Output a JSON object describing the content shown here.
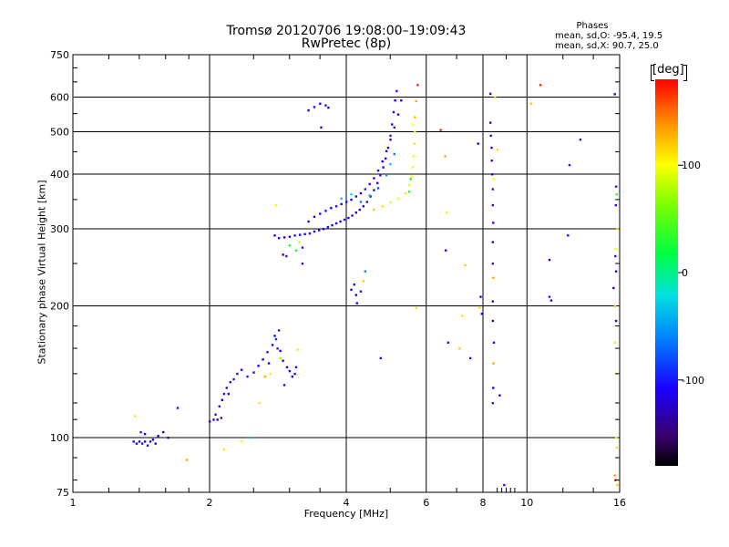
{
  "chart_data": {
    "type": "scatter",
    "title": "Tromsø 20120706 19:08:00–19:09:43",
    "subtitle": "RwPretec (8p)",
    "xlabel": "Frequency [MHz]",
    "ylabel": "Stationary phase Virtual Height [km]",
    "x_scale": "log",
    "y_scale": "log",
    "xlim": [
      1,
      16
    ],
    "ylim": [
      75,
      750
    ],
    "x_ticks": [
      "1",
      "2",
      "4",
      "6",
      "8",
      "10",
      "16"
    ],
    "x_tick_values": [
      1,
      2,
      4,
      6,
      8,
      10,
      16
    ],
    "y_ticks": [
      "75",
      "100",
      "200",
      "300",
      "400",
      "500",
      "600",
      "750"
    ],
    "y_tick_values": [
      75,
      100,
      200,
      300,
      400,
      500,
      600,
      750
    ],
    "grid": true,
    "phase_summary": {
      "header": "Phases",
      "line_o": "mean, sd,O: -95.4, 19.5",
      "line_x": "mean, sd,X:  90.7, 25.0"
    },
    "colorbar": {
      "label": "[deg]",
      "ticks": [
        "100",
        "0",
        "-100"
      ],
      "tick_values": [
        100,
        0,
        -100
      ],
      "range": [
        -180,
        180
      ]
    },
    "points": [
      [
        1.36,
        98,
        -110
      ],
      [
        1.38,
        97,
        -105
      ],
      [
        1.4,
        98,
        -115
      ],
      [
        1.42,
        97,
        -100
      ],
      [
        1.44,
        98,
        -108
      ],
      [
        1.46,
        96,
        -112
      ],
      [
        1.48,
        98,
        -104
      ],
      [
        1.5,
        99,
        -110
      ],
      [
        1.52,
        97,
        -106
      ],
      [
        1.41,
        103,
        -100
      ],
      [
        1.44,
        102,
        -108
      ],
      [
        1.54,
        101,
        -115
      ],
      [
        1.58,
        103,
        -110
      ],
      [
        1.62,
        100,
        -105
      ],
      [
        1.37,
        112,
        90
      ],
      [
        1.7,
        117,
        -100
      ],
      [
        1.78,
        89,
        130
      ],
      [
        2.0,
        109,
        -110
      ],
      [
        2.04,
        110,
        -105
      ],
      [
        2.08,
        110,
        -112
      ],
      [
        2.12,
        111,
        -108
      ],
      [
        2.06,
        113,
        -100
      ],
      [
        2.1,
        118,
        -102
      ],
      [
        2.13,
        122,
        -110
      ],
      [
        2.15,
        126,
        -96
      ],
      [
        2.18,
        130,
        -104
      ],
      [
        2.22,
        134,
        -100
      ],
      [
        2.2,
        126,
        -112
      ],
      [
        2.26,
        136,
        -98
      ],
      [
        2.3,
        140,
        -104
      ],
      [
        2.35,
        143,
        -108
      ],
      [
        2.42,
        138,
        -100
      ],
      [
        2.5,
        141,
        -112
      ],
      [
        2.56,
        146,
        -104
      ],
      [
        2.62,
        151,
        -110
      ],
      [
        2.68,
        157,
        -100
      ],
      [
        2.7,
        148,
        -115
      ],
      [
        2.75,
        163,
        -106
      ],
      [
        2.82,
        160,
        -100
      ],
      [
        2.86,
        158,
        -110
      ],
      [
        2.78,
        171,
        -104
      ],
      [
        2.84,
        176,
        -100
      ],
      [
        2.8,
        168,
        -96
      ],
      [
        2.9,
        150,
        -108
      ],
      [
        2.96,
        145,
        -104
      ],
      [
        3.0,
        142,
        -108
      ],
      [
        3.04,
        138,
        -112
      ],
      [
        3.08,
        140,
        -100
      ],
      [
        3.1,
        145,
        -106
      ],
      [
        2.92,
        132,
        -100
      ],
      [
        2.65,
        138,
        130
      ],
      [
        2.72,
        140,
        105
      ],
      [
        3.12,
        159,
        90
      ],
      [
        2.86,
        152,
        70
      ],
      [
        2.15,
        94,
        110
      ],
      [
        2.35,
        98,
        100
      ],
      [
        2.48,
        100,
        -30
      ],
      [
        2.57,
        120,
        110
      ],
      [
        2.78,
        290,
        -110
      ],
      [
        2.84,
        286,
        -105
      ],
      [
        2.92,
        287,
        -112
      ],
      [
        3.0,
        288,
        -108
      ],
      [
        3.08,
        290,
        -100
      ],
      [
        3.16,
        291,
        -104
      ],
      [
        3.24,
        292,
        -110
      ],
      [
        3.32,
        293,
        -106
      ],
      [
        3.4,
        296,
        -112
      ],
      [
        3.48,
        298,
        -104
      ],
      [
        3.56,
        300,
        -108
      ],
      [
        3.64,
        303,
        -100
      ],
      [
        3.72,
        306,
        -110
      ],
      [
        3.8,
        309,
        -104
      ],
      [
        3.88,
        312,
        -106
      ],
      [
        3.96,
        315,
        -100
      ],
      [
        4.04,
        318,
        -108
      ],
      [
        4.12,
        322,
        -102
      ],
      [
        4.2,
        327,
        -110
      ],
      [
        4.28,
        332,
        -104
      ],
      [
        4.36,
        338,
        -106
      ],
      [
        4.44,
        346,
        -100
      ],
      [
        4.52,
        356,
        -108
      ],
      [
        4.6,
        368,
        -104
      ],
      [
        4.68,
        382,
        -110
      ],
      [
        4.75,
        398,
        -100
      ],
      [
        4.82,
        415,
        -106
      ],
      [
        4.88,
        435,
        -104
      ],
      [
        4.94,
        460,
        -110
      ],
      [
        5.0,
        490,
        -100
      ],
      [
        5.04,
        520,
        -106
      ],
      [
        5.08,
        555,
        -104
      ],
      [
        5.12,
        590,
        -108
      ],
      [
        5.16,
        620,
        -100
      ],
      [
        3.3,
        312,
        -110
      ],
      [
        3.4,
        320,
        -104
      ],
      [
        3.5,
        325,
        -106
      ],
      [
        3.6,
        330,
        -100
      ],
      [
        3.7,
        335,
        -108
      ],
      [
        3.8,
        338,
        -104
      ],
      [
        3.9,
        342,
        -110
      ],
      [
        4.0,
        346,
        -100
      ],
      [
        4.1,
        350,
        -106
      ],
      [
        4.2,
        356,
        -104
      ],
      [
        4.3,
        362,
        -108
      ],
      [
        4.4,
        370,
        -100
      ],
      [
        4.5,
        380,
        -104
      ],
      [
        4.6,
        392,
        -110
      ],
      [
        4.7,
        408,
        -100
      ],
      [
        4.8,
        428,
        -106
      ],
      [
        4.9,
        452,
        -104
      ],
      [
        5.0,
        480,
        -108
      ],
      [
        5.1,
        512,
        -100
      ],
      [
        5.2,
        548,
        -106
      ],
      [
        5.28,
        590,
        -104
      ],
      [
        3.9,
        352,
        -30
      ],
      [
        4.1,
        360,
        -20
      ],
      [
        4.3,
        346,
        -60
      ],
      [
        4.5,
        358,
        -40
      ],
      [
        4.7,
        372,
        -80
      ],
      [
        4.9,
        398,
        -50
      ],
      [
        5.0,
        422,
        -30
      ],
      [
        5.1,
        445,
        -60
      ],
      [
        4.6,
        332,
        120
      ],
      [
        4.8,
        338,
        110
      ],
      [
        5.0,
        345,
        105
      ],
      [
        5.2,
        352,
        100
      ],
      [
        5.4,
        362,
        110
      ],
      [
        5.5,
        378,
        95
      ],
      [
        5.56,
        395,
        100
      ],
      [
        5.6,
        415,
        105
      ],
      [
        5.62,
        440,
        100
      ],
      [
        5.64,
        470,
        110
      ],
      [
        5.66,
        500,
        95
      ],
      [
        5.6,
        520,
        100
      ],
      [
        5.5,
        365,
        30
      ],
      [
        5.54,
        390,
        20
      ],
      [
        5.66,
        540,
        125
      ],
      [
        5.7,
        588,
        130
      ],
      [
        5.74,
        640,
        170
      ],
      [
        3.3,
        560,
        -110
      ],
      [
        3.4,
        570,
        -104
      ],
      [
        3.5,
        580,
        -108
      ],
      [
        3.6,
        575,
        -100
      ],
      [
        3.65,
        568,
        -106
      ],
      [
        3.52,
        512,
        -104
      ],
      [
        4.1,
        218,
        -110
      ],
      [
        4.16,
        224,
        -104
      ],
      [
        4.2,
        212,
        -112
      ],
      [
        4.22,
        203,
        -108
      ],
      [
        4.3,
        216,
        -100
      ],
      [
        4.36,
        228,
        120
      ],
      [
        4.4,
        240,
        -60
      ],
      [
        2.9,
        262,
        -110
      ],
      [
        2.95,
        260,
        -100
      ],
      [
        3.0,
        275,
        30
      ],
      [
        3.1,
        268,
        20
      ],
      [
        3.15,
        280,
        80
      ],
      [
        3.2,
        272,
        -100
      ],
      [
        2.8,
        340,
        105
      ],
      [
        3.2,
        250,
        -100
      ],
      [
        4.76,
        152,
        -110
      ],
      [
        5.7,
        198,
        110
      ],
      [
        6.45,
        505,
        170
      ],
      [
        6.65,
        327,
        100
      ],
      [
        6.6,
        440,
        130
      ],
      [
        6.62,
        268,
        -100
      ],
      [
        6.7,
        165,
        -104
      ],
      [
        7.3,
        248,
        120
      ],
      [
        7.1,
        160,
        120
      ],
      [
        7.2,
        190,
        110
      ],
      [
        7.5,
        152,
        -100
      ],
      [
        7.8,
        470,
        -110
      ],
      [
        7.85,
        198,
        110
      ],
      [
        7.9,
        210,
        -110
      ],
      [
        7.95,
        192,
        -110
      ],
      [
        8.3,
        611,
        -104
      ],
      [
        8.3,
        525,
        -110
      ],
      [
        8.32,
        490,
        -100
      ],
      [
        8.35,
        460,
        -106
      ],
      [
        8.36,
        430,
        -104
      ],
      [
        8.38,
        400,
        -110
      ],
      [
        8.4,
        370,
        -100
      ],
      [
        8.4,
        340,
        -106
      ],
      [
        8.42,
        310,
        -104
      ],
      [
        8.4,
        280,
        -110
      ],
      [
        8.4,
        250,
        -100
      ],
      [
        8.42,
        232,
        130
      ],
      [
        8.4,
        205,
        -110
      ],
      [
        8.4,
        185,
        -106
      ],
      [
        8.45,
        165,
        -104
      ],
      [
        8.42,
        130,
        -110
      ],
      [
        8.4,
        120,
        -100
      ],
      [
        8.43,
        148,
        130
      ],
      [
        8.45,
        390,
        100
      ],
      [
        8.5,
        600,
        110
      ],
      [
        8.6,
        455,
        110
      ],
      [
        8.7,
        125,
        -110
      ],
      [
        8.9,
        78,
        -100
      ],
      [
        10.2,
        580,
        120
      ],
      [
        10.7,
        640,
        170
      ],
      [
        11.2,
        255,
        -110
      ],
      [
        11.2,
        210,
        -100
      ],
      [
        11.3,
        206,
        -110
      ],
      [
        12.3,
        290,
        -104
      ],
      [
        12.4,
        420,
        -100
      ],
      [
        13.1,
        480,
        -100
      ],
      [
        15.6,
        610,
        -104
      ],
      [
        15.5,
        220,
        -110
      ],
      [
        15.62,
        200,
        120
      ],
      [
        15.7,
        185,
        -110
      ],
      [
        15.72,
        100,
        100
      ],
      [
        15.75,
        95,
        110
      ],
      [
        15.6,
        82,
        130
      ],
      [
        15.64,
        80,
        170
      ],
      [
        15.8,
        78,
        120
      ],
      [
        15.7,
        140,
        100
      ],
      [
        15.62,
        165,
        110
      ],
      [
        15.66,
        270,
        100
      ],
      [
        15.8,
        300,
        110
      ],
      [
        15.75,
        360,
        30
      ],
      [
        15.7,
        375,
        -100
      ],
      [
        15.68,
        340,
        -104
      ],
      [
        15.64,
        260,
        -100
      ],
      [
        15.7,
        240,
        -110
      ]
    ]
  }
}
